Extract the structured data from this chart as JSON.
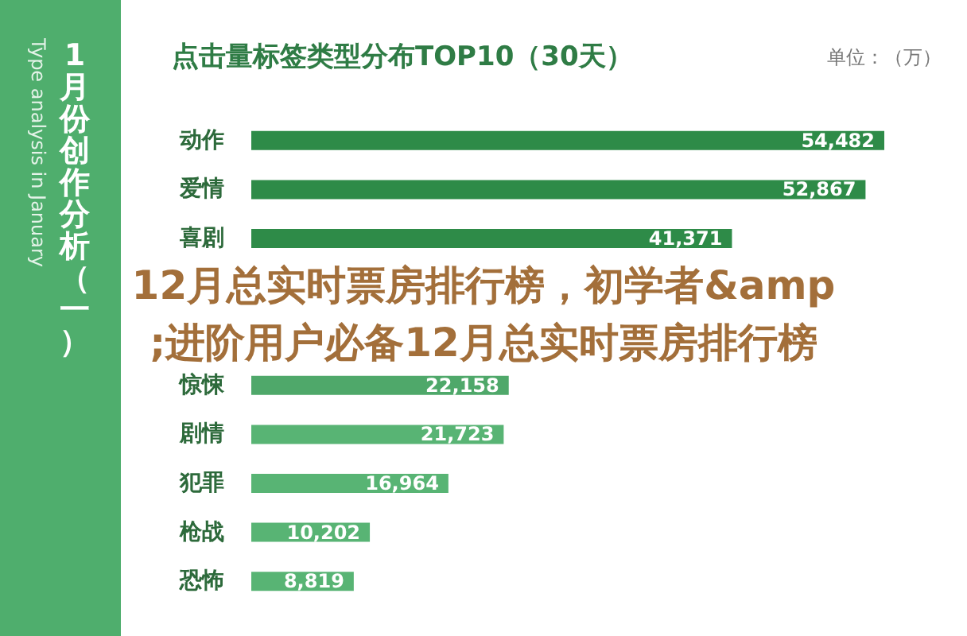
{
  "chart_data": [
    {
      "type": "other",
      "annotations": [
        "1月份创作分析（一）",
        "Type analysis in January"
      ]
    },
    {
      "type": "bar",
      "orientation": "horizontal",
      "title": "点击量标签类型分布TOP10（30天）",
      "categories": [
        "动作",
        "爱情",
        "喜剧",
        null,
        null,
        "惊悚",
        "剧情",
        "犯罪",
        "枪战",
        "恐怖"
      ],
      "values": [
        54482,
        52867,
        41371,
        null,
        null,
        22158,
        21723,
        16964,
        10202,
        8819
      ],
      "value_labels": [
        "54,482",
        "52,867",
        "41,371",
        null,
        null,
        "22,158",
        "21,723",
        "16,964",
        "10,202",
        "8,819"
      ],
      "colors": [
        "#2e8b48",
        "#2e8b48",
        "#2e8b48",
        null,
        null,
        "#4fa86a",
        "#58b474",
        "#58b474",
        "#58b474",
        "#58b474"
      ],
      "annotations": [
        "单位：（万）",
        "12月总实时票房排行榜，初学者&amp;进阶用户必备12月总实时票房排行榜"
      ]
    }
  ]
}
